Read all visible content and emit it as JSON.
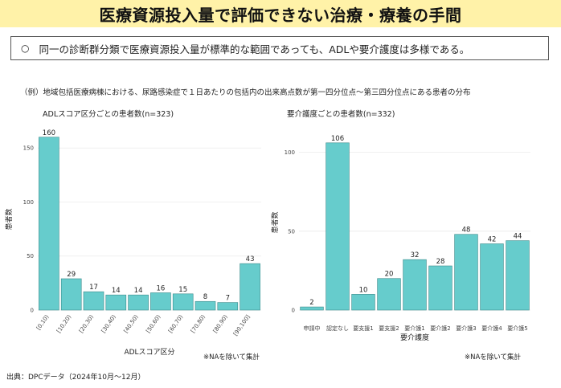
{
  "header": {
    "title": "医療資源投入量で評価できない治療・療養の手間"
  },
  "summary": {
    "bullet": "○",
    "text": "同一の診断群分類で医療資源投入量が標準的な範囲であっても、ADLや要介護度は多様である。"
  },
  "example_caption": "（例）地域包括医療病棟における、尿路感染症で１日あたりの包括内の出来高点数が第一四分位点～第三四分位点にある患者の分布",
  "source": "出典：DPCデータ（2024年10月～12月）",
  "colors": {
    "bar": "#66cccc",
    "bar_stroke": "#3a8a8a",
    "title_bg": "#fff2a8"
  },
  "chart_data": [
    {
      "type": "bar",
      "title": "ADLスコア区分ごとの患者数(n=323)",
      "xlabel": "ADLスコア区分",
      "ylabel": "患者数",
      "categories": [
        "[0,10)",
        "[10,20)",
        "[20,30)",
        "[30,40)",
        "[40,50)",
        "[50,60)",
        "[60,70)",
        "[70,80)",
        "[80,90)",
        "[90,100]"
      ],
      "values": [
        160,
        29,
        17,
        14,
        14,
        16,
        15,
        8,
        7,
        43
      ],
      "yticks": [
        0,
        50,
        100,
        150
      ],
      "ylim": [
        0,
        168
      ],
      "note": "※NAを除いて集計",
      "grid": true
    },
    {
      "type": "bar",
      "title": "要介護度ごとの患者数(n=332)",
      "xlabel": "要介護度",
      "ylabel": "患者数",
      "categories": [
        "申請中",
        "認定なし",
        "要支援1",
        "要支援2",
        "要介護1",
        "要介護2",
        "要介護3",
        "要介護4",
        "要介護5"
      ],
      "values": [
        2,
        106,
        10,
        20,
        32,
        28,
        48,
        42,
        44
      ],
      "yticks": [
        0,
        50,
        100
      ],
      "ylim": [
        0,
        111
      ],
      "note": "※NAを除いて集計",
      "grid": true
    }
  ]
}
